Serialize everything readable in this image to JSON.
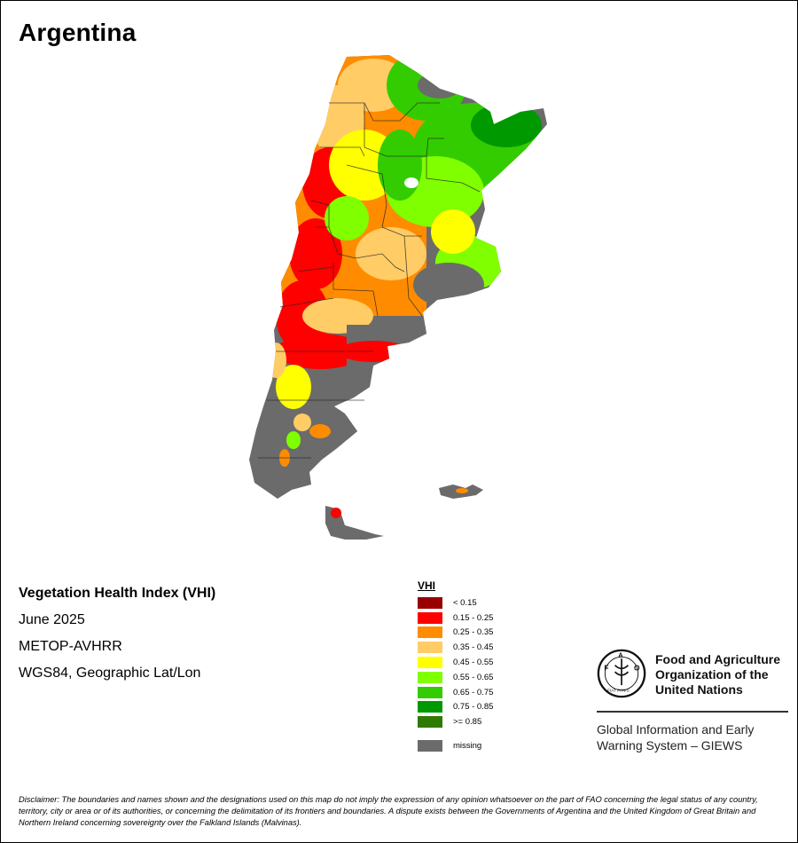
{
  "map": {
    "title": "Argentina",
    "colors": {
      "missing": "#6b6b6b",
      "lt015": "#990000",
      "v015_025": "#ff0000",
      "v025_035": "#ff8c00",
      "v035_045": "#ffcc66",
      "v045_055": "#ffff00",
      "v055_065": "#7fff00",
      "v065_075": "#33cc00",
      "v075_085": "#009900",
      "ge085": "#2e7a00"
    }
  },
  "info": {
    "product": "Vegetation Health Index (VHI)",
    "date": "June 2025",
    "sensor": "METOP-AVHRR",
    "projection": "WGS84, Geographic Lat/Lon"
  },
  "legend": {
    "title": "VHI",
    "items": [
      {
        "label": "< 0.15",
        "color": "#990000"
      },
      {
        "label": "0.15 - 0.25",
        "color": "#ff0000"
      },
      {
        "label": "0.25 - 0.35",
        "color": "#ff8c00"
      },
      {
        "label": "0.35 - 0.45",
        "color": "#ffcc66"
      },
      {
        "label": "0.45 - 0.55",
        "color": "#ffff00"
      },
      {
        "label": "0.55 - 0.65",
        "color": "#7fff00"
      },
      {
        "label": "0.65 - 0.75",
        "color": "#33cc00"
      },
      {
        "label": "0.75 - 0.85",
        "color": "#009900"
      },
      {
        "label": ">= 0.85",
        "color": "#2e7a00"
      }
    ],
    "missing": {
      "label": "missing",
      "color": "#6b6b6b"
    }
  },
  "org": {
    "logo_text": "FAO",
    "logo_motto": "FIAT PANIS",
    "name_line1": "Food and Agriculture",
    "name_line2": "Organization of the",
    "name_line3": "United Nations",
    "system_line1": "Global Information and Early",
    "system_line2": "Warning System – GIEWS"
  },
  "disclaimer": "Disclaimer: The boundaries and names shown and the designations used on this map do not imply the expression of any opinion whatsoever on the part of FAO concerning the legal status of any country, territory, city or area or of its authorities, or concerning the delimitation of its frontiers and boundaries. A dispute exists between the Governments of Argentina and the United Kingdom of Great Britain and Northern Ireland concerning sovereignty over the Falkland Islands (Malvinas)."
}
